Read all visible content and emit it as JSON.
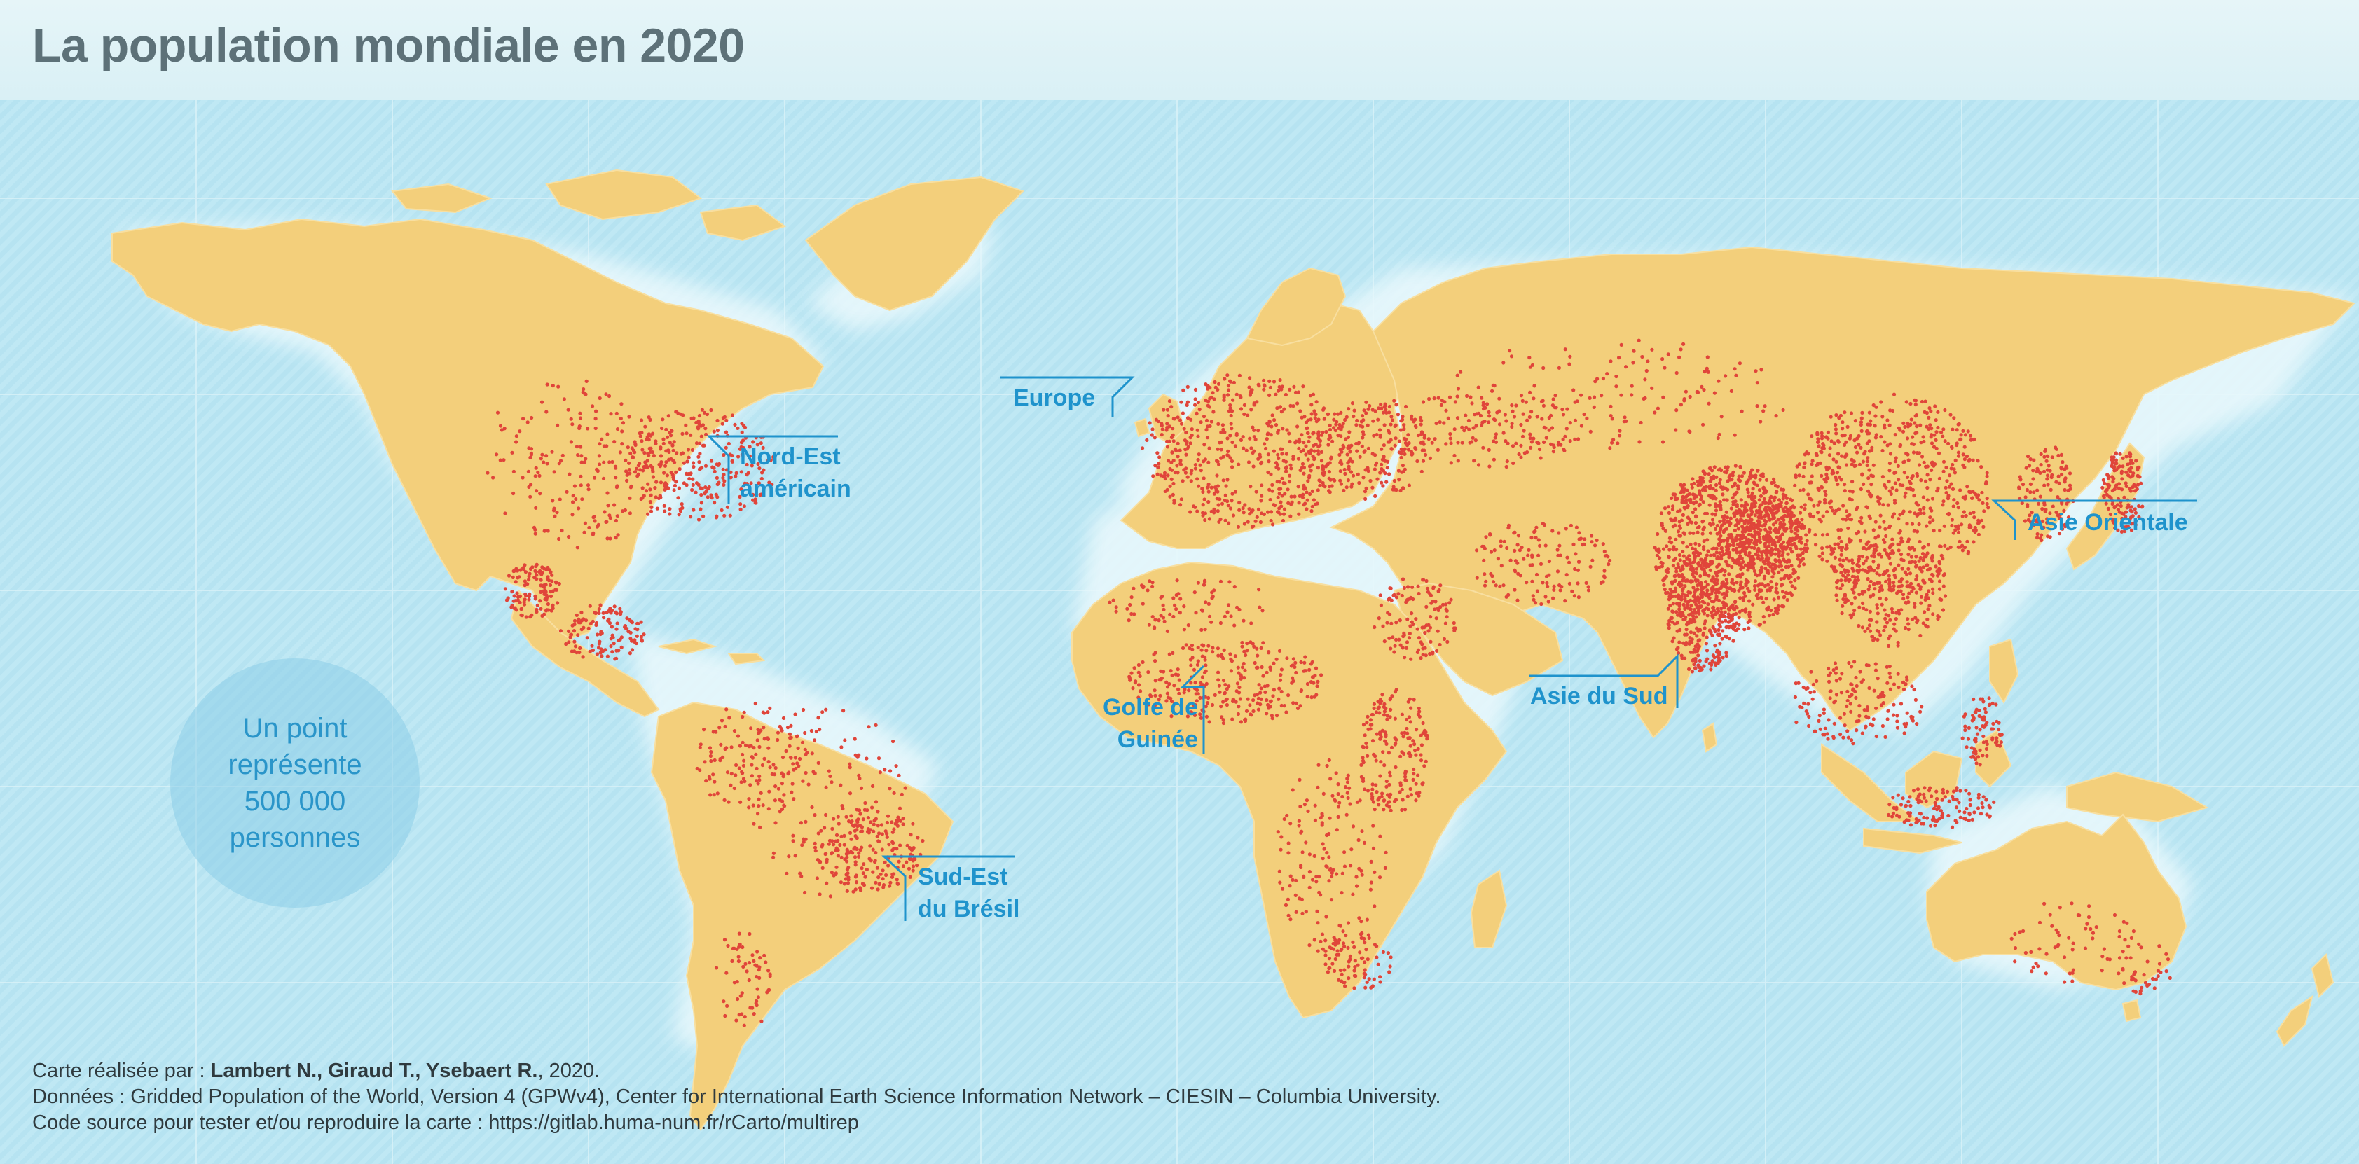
{
  "title": "La population mondiale en 2020",
  "legend": {
    "text": "Un point représente 500 000 personnes"
  },
  "labels": {
    "europe": "Europe",
    "nord_est_line1": "Nord-Est",
    "nord_est_line2": "américain",
    "asie_orientale": "Asie Orientale",
    "golfe_line1": "Golfe de",
    "golfe_line2": "Guinée",
    "asie_du_sud": "Asie du Sud",
    "sud_est_line1": "Sud-Est",
    "sud_est_line2": "du Brésil"
  },
  "credits": {
    "line1_prefix": "Carte réalisée par : ",
    "line1_authors": "Lambert N., Giraud T., Ysebaert R.",
    "line1_suffix": ", 2020.",
    "line2": "Données : Gridded Population of the World, Version 4 (GPWv4), Center for International Earth Science Information Network – CIESIN – Columbia University.",
    "line3": "Code source pour tester et/ou reproduire la carte : https://gitlab.huma-num.fr/rCarto/multirep"
  },
  "colors": {
    "ocean": "#bfe8f4",
    "land": "#f3cf7b",
    "dots": "#e0453a",
    "label": "#1f93cc",
    "title": "#5d7178"
  }
}
